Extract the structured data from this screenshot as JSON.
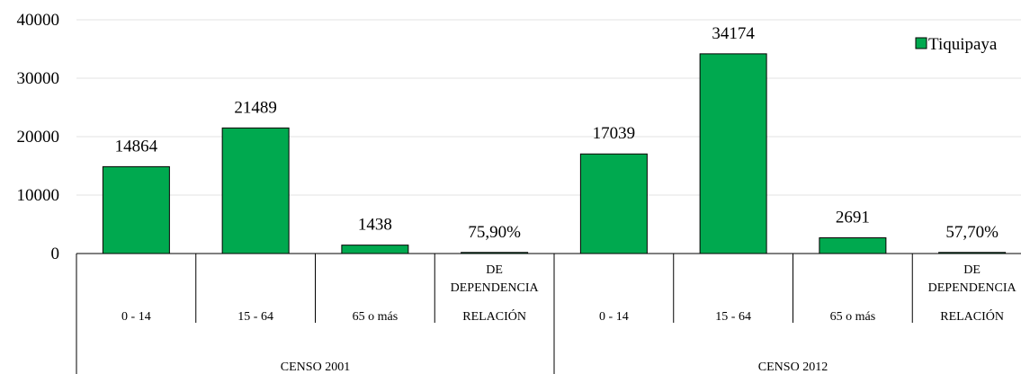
{
  "chart_data": {
    "type": "bar",
    "title": "",
    "xlabel": "",
    "ylabel": "",
    "ylim": [
      0,
      40000
    ],
    "yticks": [
      0,
      10000,
      20000,
      30000,
      40000
    ],
    "grid": true,
    "legend_position": "top-right",
    "groups": [
      {
        "label": "CENSO 2001",
        "categories": [
          "0 - 14",
          "15 - 64",
          "65 o más",
          "RELACIÓN DE DEPENDENCIA"
        ]
      },
      {
        "label": "CENSO 2012",
        "categories": [
          "0 - 14",
          "15 - 64",
          "65 o más",
          "RELACIÓN DE DEPENDENCIA"
        ]
      }
    ],
    "category_labels": [
      {
        "lines": [
          "0 - 14"
        ]
      },
      {
        "lines": [
          "15 - 64"
        ]
      },
      {
        "lines": [
          "65 o más"
        ]
      },
      {
        "top": [
          "DE",
          "DEPENDENCIA"
        ],
        "bottom": "RELACIÓN"
      },
      {
        "lines": [
          "0 - 14"
        ]
      },
      {
        "lines": [
          "15 - 64"
        ]
      },
      {
        "lines": [
          "65 o más"
        ]
      },
      {
        "top": [
          "DE",
          "DEPENDENCIA"
        ],
        "bottom": "RELACIÓN"
      }
    ],
    "series": [
      {
        "name": "Tiquipaya",
        "color": "#00a94f",
        "values": [
          14864,
          21489,
          1438,
          75.9,
          17039,
          34174,
          2691,
          57.7
        ],
        "data_labels": [
          "14864",
          "21489",
          "1438",
          "75,90%",
          "17039",
          "34174",
          "2691",
          "57,70%"
        ]
      }
    ]
  }
}
